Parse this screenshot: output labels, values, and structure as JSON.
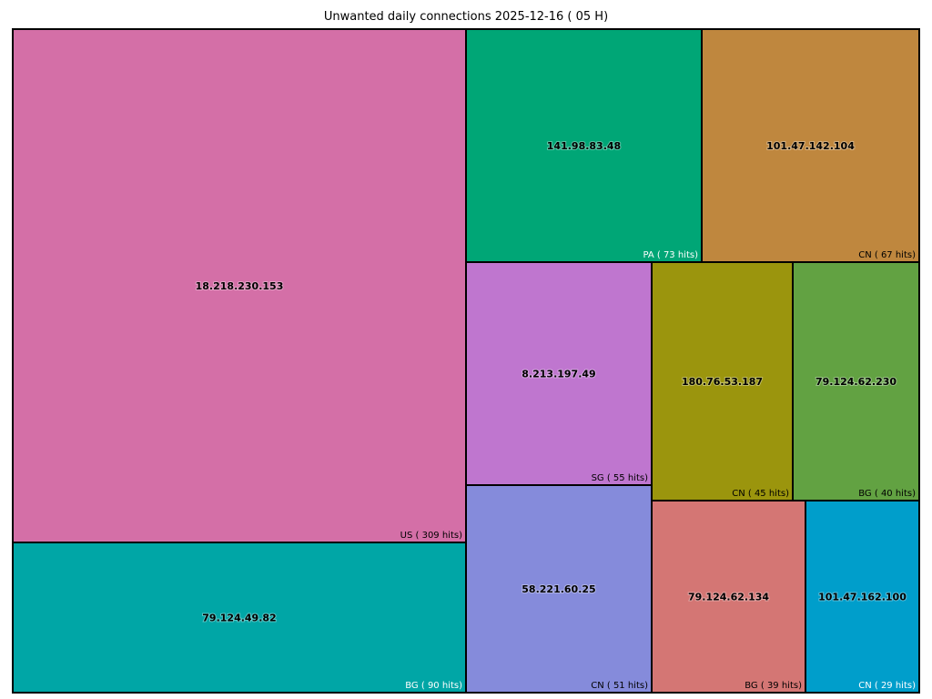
{
  "chart_data": {
    "type": "treemap",
    "title": "Unwanted daily connections 2025-12-16 ( 05 H)",
    "unit_label": "hits",
    "items": [
      {
        "ip": "18.218.230.153",
        "country": "US",
        "hits": 309,
        "color": "#d46fa7",
        "text_color": "#000000"
      },
      {
        "ip": "79.124.49.82",
        "country": "BG",
        "hits": 90,
        "color": "#00a6a6",
        "text_color": "#ffffff"
      },
      {
        "ip": "141.98.83.48",
        "country": "PA",
        "hits": 73,
        "color": "#00a676",
        "text_color": "#ffffff"
      },
      {
        "ip": "101.47.142.104",
        "country": "CN",
        "hits": 67,
        "color": "#bf873e",
        "text_color": "#000000"
      },
      {
        "ip": "8.213.197.49",
        "country": "SG",
        "hits": 55,
        "color": "#bf76cf",
        "text_color": "#000000"
      },
      {
        "ip": "58.221.60.25",
        "country": "CN",
        "hits": 51,
        "color": "#858bdb",
        "text_color": "#000000"
      },
      {
        "ip": "180.76.53.187",
        "country": "CN",
        "hits": 45,
        "color": "#9b950d",
        "text_color": "#000000"
      },
      {
        "ip": "79.124.62.230",
        "country": "BG",
        "hits": 40,
        "color": "#62a242",
        "text_color": "#000000"
      },
      {
        "ip": "79.124.62.134",
        "country": "BG",
        "hits": 39,
        "color": "#d47674",
        "text_color": "#000000"
      },
      {
        "ip": "101.47.162.100",
        "country": "CN",
        "hits": 29,
        "color": "#009ecb",
        "text_color": "#ffffff"
      }
    ]
  }
}
